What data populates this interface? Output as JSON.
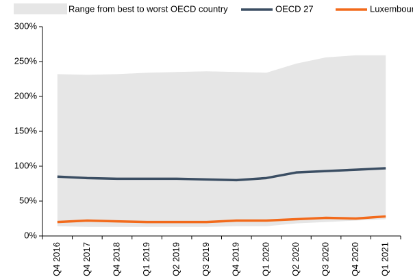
{
  "chart_data": {
    "type": "line",
    "categories": [
      "Q4 2016",
      "Q4 2017",
      "Q4 2018",
      "Q1 2019",
      "Q2 2019",
      "Q3 2019",
      "Q4 2019",
      "Q1 2020",
      "Q2 2020",
      "Q3 2020",
      "Q4 2020",
      "Q1 2021"
    ],
    "range": {
      "name": "Range from best to worst OECD country",
      "color": "#e6e6e6",
      "lower": [
        14,
        13,
        13,
        13,
        13,
        13,
        14,
        14,
        18,
        20,
        22,
        24
      ],
      "upper": [
        232,
        231,
        232,
        234,
        235,
        236,
        235,
        234,
        247,
        256,
        259,
        259
      ]
    },
    "series": [
      {
        "name": "OECD 27",
        "color": "#3b4e63",
        "values": [
          85,
          83,
          82,
          82,
          82,
          81,
          80,
          83,
          91,
          93,
          95,
          97
        ]
      },
      {
        "name": "Luxembourg",
        "color": "#f26a1b",
        "values": [
          20,
          22,
          21,
          20,
          20,
          20,
          22,
          22,
          24,
          26,
          25,
          28
        ]
      }
    ],
    "ylim": [
      0,
      300
    ],
    "yticks": [
      {
        "value": 0,
        "label": "0%"
      },
      {
        "value": 50,
        "label": "50%"
      },
      {
        "value": 100,
        "label": "100%"
      },
      {
        "value": 150,
        "label": "150%"
      },
      {
        "value": 200,
        "label": "200%"
      },
      {
        "value": 250,
        "label": "250%"
      },
      {
        "value": 300,
        "label": "300%"
      }
    ]
  }
}
